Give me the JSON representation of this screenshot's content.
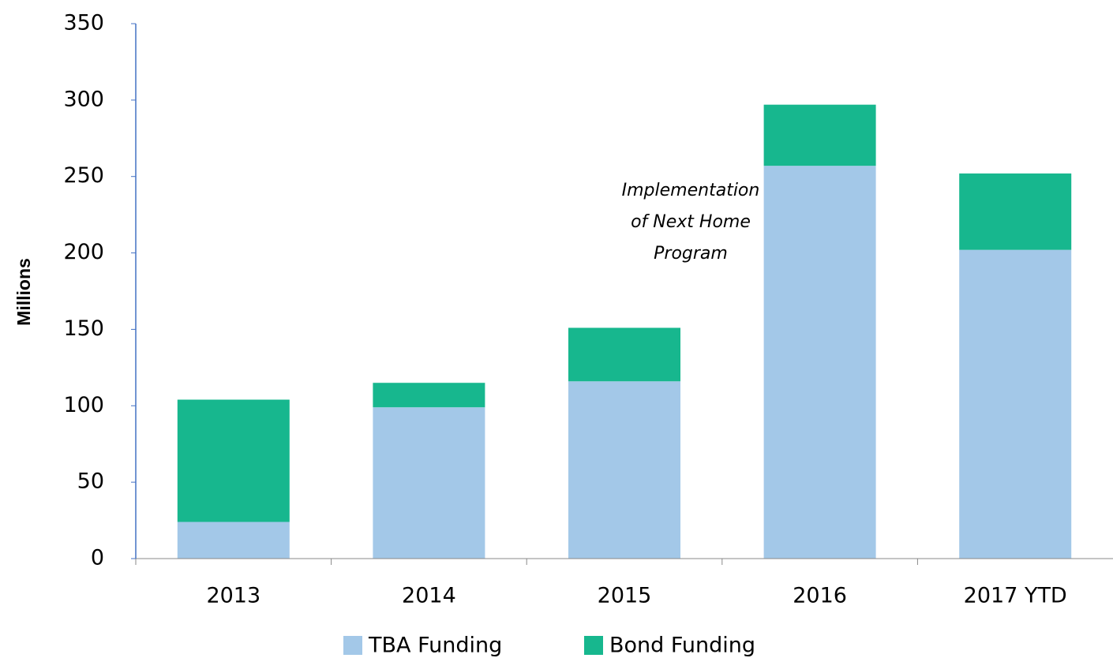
{
  "chart_data": {
    "type": "stacked_bar",
    "ylabel": "Millions",
    "categories": [
      "2013",
      "2014",
      "2015",
      "2016",
      "2017 YTD"
    ],
    "series": [
      {
        "name": "TBA Funding",
        "color": "#a3c8e8",
        "values": [
          24,
          99,
          116,
          257,
          202
        ]
      },
      {
        "name": "Bond Funding",
        "color": "#17b78e",
        "values": [
          80,
          16,
          35,
          40,
          50
        ]
      }
    ],
    "ylim": [
      0,
      350
    ],
    "yticks": [
      0,
      50,
      100,
      150,
      200,
      250,
      300,
      350
    ],
    "annotation": [
      "Implementation",
      "of Next Home",
      "Program"
    ],
    "legend": "bottom"
  }
}
